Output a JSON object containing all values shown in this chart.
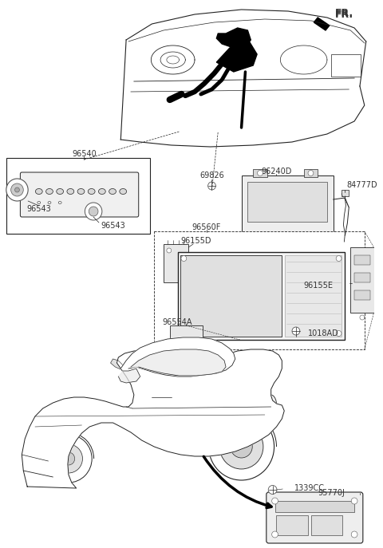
{
  "bg_color": "#ffffff",
  "lc": "#555555",
  "lc_dark": "#222222",
  "figsize": [
    4.8,
    6.87
  ],
  "dpi": 100,
  "labels": {
    "FR": [
      0.94,
      0.968,
      "FR.",
      9,
      true
    ],
    "96540": [
      0.175,
      0.765,
      "96540",
      7,
      false
    ],
    "96543a": [
      0.068,
      0.69,
      "96543",
      7,
      false
    ],
    "96543b": [
      0.175,
      0.633,
      "96543",
      7,
      false
    ],
    "69826": [
      0.34,
      0.708,
      "69826",
      7,
      false
    ],
    "96240D": [
      0.595,
      0.68,
      "96240D",
      7,
      false
    ],
    "84777D": [
      0.845,
      0.663,
      "84777D",
      7,
      false
    ],
    "96560F": [
      0.345,
      0.615,
      "96560F",
      7,
      false
    ],
    "96155D": [
      0.32,
      0.582,
      "96155D",
      7,
      false
    ],
    "96155E": [
      0.76,
      0.527,
      "96155E",
      7,
      false
    ],
    "96554A": [
      0.31,
      0.455,
      "96554A",
      7,
      false
    ],
    "1018AD": [
      0.668,
      0.432,
      "1018AD",
      7,
      false
    ],
    "1339CC": [
      0.68,
      0.253,
      "1339CC",
      7,
      false
    ],
    "95770J": [
      0.772,
      0.208,
      "95770J",
      7,
      false
    ]
  }
}
